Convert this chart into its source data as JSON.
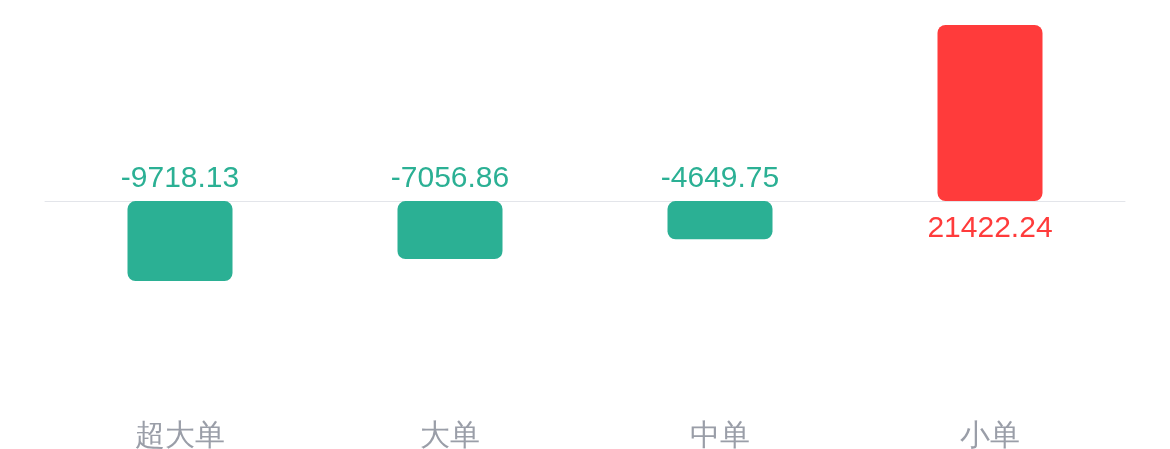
{
  "chart_data": {
    "type": "bar",
    "categories": [
      "超大单",
      "大单",
      "中单",
      "小单"
    ],
    "values": [
      -9718.13,
      -7056.86,
      -4649.75,
      21422.24
    ],
    "colors": [
      "#2bb094",
      "#2bb094",
      "#2bb094",
      "#ff3b3b"
    ],
    "data_labels": true
  }
}
